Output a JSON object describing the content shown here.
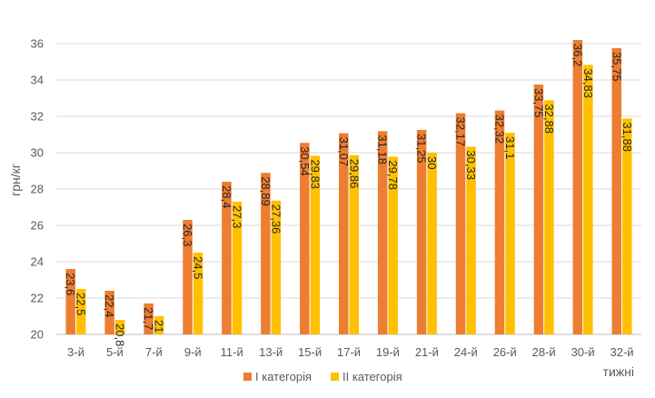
{
  "chart_data": {
    "type": "bar",
    "title": "",
    "ylabel": "грн/кг",
    "xlabel": "тижні",
    "ylim": [
      20,
      36
    ],
    "yticks": [
      20,
      22,
      24,
      26,
      28,
      30,
      32,
      34,
      36
    ],
    "grid": true,
    "legend_position": "bottom",
    "categories": [
      "3-й",
      "5-й",
      "7-й",
      "9-й",
      "11-й",
      "13-й",
      "15-й",
      "17-й",
      "19-й",
      "21-й",
      "24-й",
      "26-й",
      "28-й",
      "30-й",
      "32-й"
    ],
    "series": [
      {
        "name": "I категорія",
        "color": "#ED7D31",
        "values": [
          23.6,
          22.4,
          21.7,
          26.3,
          28.4,
          28.89,
          30.54,
          31.07,
          31.18,
          31.25,
          32.17,
          32.32,
          33.75,
          36.2,
          35.75
        ],
        "labels": [
          "23,6",
          "22,4",
          "21,7",
          "26,3",
          "28,4",
          "28,89",
          "30,54",
          "31,07",
          "31,18",
          "31,25",
          "32,17",
          "32,32",
          "33,75",
          "36,2",
          "35,75"
        ]
      },
      {
        "name": "II категорія",
        "color": "#FFC000",
        "values": [
          22.5,
          20.8,
          21,
          24.5,
          27.3,
          27.36,
          29.83,
          29.86,
          29.78,
          30,
          30.33,
          31.1,
          32.88,
          34.83,
          31.88
        ],
        "labels": [
          "22,5",
          "20,8",
          "21",
          "24,5",
          "27,3",
          "27,36",
          "29,83",
          "29,86",
          "29,78",
          "30",
          "30,33",
          "31,1",
          "32,88",
          "34,83",
          "31,88"
        ]
      }
    ]
  }
}
